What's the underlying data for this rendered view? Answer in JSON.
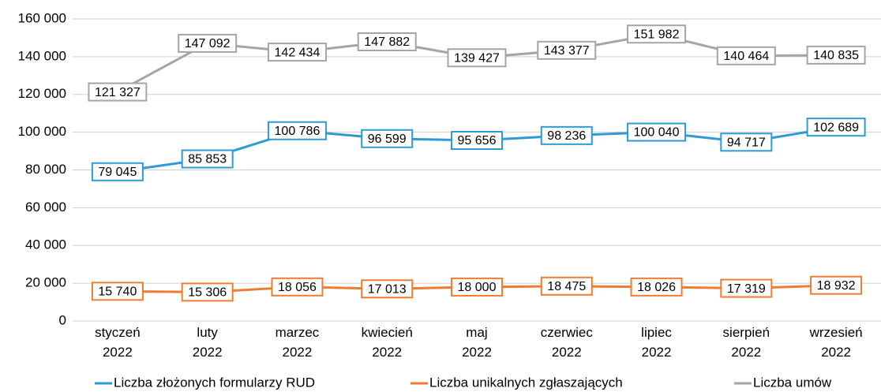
{
  "chart_data": {
    "type": "line",
    "categories": [
      "styczeń 2022",
      "luty 2022",
      "marzec 2022",
      "kwiecień 2022",
      "maj 2022",
      "czerwiec 2022",
      "lipiec 2022",
      "sierpień 2022",
      "wrzesień 2022"
    ],
    "series": [
      {
        "name": "Liczba złożonych formularzy RUD",
        "color": "#2e9ad6",
        "values": [
          79045,
          85853,
          100786,
          96599,
          95656,
          98236,
          100040,
          94717,
          102689
        ],
        "value_labels": [
          "79 045",
          "85 853",
          "100 786",
          "96 599",
          "95 656",
          "98 236",
          "100 040",
          "94 717",
          "102 689"
        ]
      },
      {
        "name": "Liczba unikalnych zgłaszających",
        "color": "#ed7d31",
        "values": [
          15740,
          15306,
          18056,
          17013,
          18000,
          18475,
          18026,
          17319,
          18932
        ],
        "value_labels": [
          "15 740",
          "15 306",
          "18 056",
          "17 013",
          "18 000",
          "18 475",
          "18 026",
          "17 319",
          "18 932"
        ]
      },
      {
        "name": "Liczba umów",
        "color": "#a5a5a5",
        "values": [
          121327,
          147092,
          142434,
          147882,
          139427,
          143377,
          151982,
          140464,
          140835
        ],
        "value_labels": [
          "121 327",
          "147 092",
          "142 434",
          "147 882",
          "139 427",
          "143 377",
          "151 982",
          "140 464",
          "140 835"
        ]
      }
    ],
    "ylim": [
      0,
      160000
    ],
    "yticks": [
      0,
      {
        "value": 20000,
        "label": "20 000"
      },
      {
        "value": 40000,
        "label": "40 000"
      },
      {
        "value": 60000,
        "label": "60 000"
      },
      {
        "value": 80000,
        "label": "80 000"
      },
      {
        "value": 100000,
        "label": "100 000"
      },
      {
        "value": 120000,
        "label": "120 000"
      },
      {
        "value": 140000,
        "label": "140 000"
      },
      {
        "value": 160000,
        "label": "160 000"
      }
    ],
    "grid": true,
    "legend": "bottom"
  }
}
